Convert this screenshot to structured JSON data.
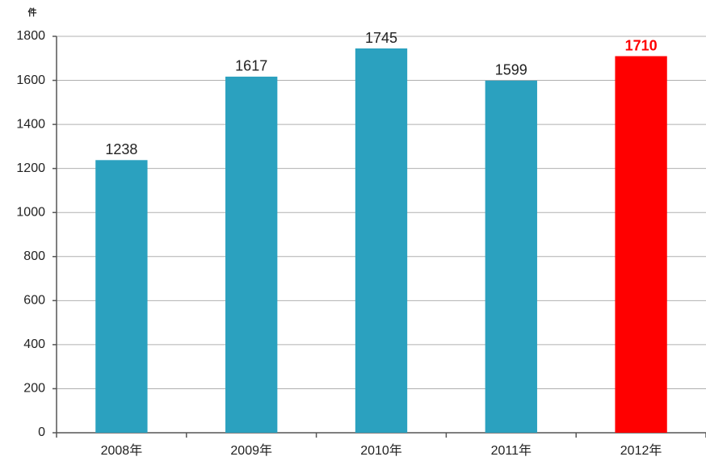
{
  "chart_data": {
    "type": "bar",
    "y_label": "件",
    "categories": [
      "2008年",
      "2009年",
      "2010年",
      "2011年",
      "2012年"
    ],
    "values": [
      1238,
      1617,
      1745,
      1599,
      1710
    ],
    "colors": [
      "#2ba1bf",
      "#2ba1bf",
      "#2ba1bf",
      "#2ba1bf",
      "#ff0000"
    ],
    "value_label_colors": [
      "#222222",
      "#222222",
      "#222222",
      "#222222",
      "#ff0000"
    ],
    "value_label_bold": [
      false,
      false,
      false,
      false,
      true
    ],
    "ylim": [
      0,
      1800
    ],
    "yticks": [
      0,
      200,
      400,
      600,
      800,
      1000,
      1200,
      1400,
      1600,
      1800
    ],
    "grid": true
  }
}
